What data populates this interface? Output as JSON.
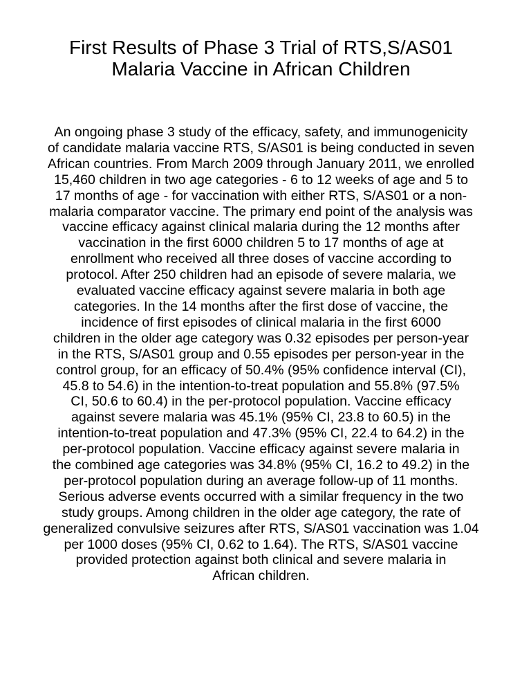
{
  "document": {
    "title_lines": [
      "First Results of Phase 3 Trial of RTS,S/AS01",
      "Malaria Vaccine in African Children"
    ],
    "abstract_lines": [
      "An ongoing phase 3 study of the efficacy, safety, and immunogenicity",
      "of candidate malaria vaccine RTS, S/AS01 is being conducted in seven",
      "African countries. From March 2009 through January 2011, we enrolled",
      "15,460 children in two age categories - 6 to 12 weeks of age and 5 to",
      "17 months of age - for vaccination with either RTS, S/AS01 or a non-",
      "malaria comparator vaccine. The primary end point of the analysis was",
      "vaccine efficacy against clinical malaria during the 12 months after",
      "vaccination in the first 6000 children 5 to 17 months of age at",
      "enrollment who received all three doses of vaccine according to",
      "protocol. After 250 children had an episode of severe malaria, we",
      "evaluated vaccine efficacy against severe malaria in both age",
      "categories. In the 14 months after the first dose of vaccine, the",
      "incidence of first episodes of clinical malaria in the first 6000",
      "children in the older age category was 0.32 episodes per person-year",
      "in the RTS, S/AS01 group and 0.55 episodes per person-year in the",
      "control group, for an efficacy of 50.4% (95% confidence interval (CI),",
      "45.8 to 54.6) in the intention-to-treat population and 55.8% (97.5%",
      "CI, 50.6 to 60.4) in the per-protocol population. Vaccine efficacy",
      "against severe malaria was 45.1% (95% CI, 23.8 to 60.5) in the",
      "intention-to-treat population and 47.3% (95% CI, 22.4 to 64.2) in the",
      "per-protocol population. Vaccine efficacy against severe malaria in",
      "the combined age categories was 34.8% (95% CI, 16.2 to 49.2) in the",
      "per-protocol population during an average follow-up of 11 months.",
      "Serious adverse events occurred with a similar frequency in the two",
      "study groups. Among children in the older age category, the rate of",
      "generalized convulsive seizures after RTS, S/AS01 vaccination was 1.04",
      "per 1000 doses (95% CI, 0.62 to 1.64). The RTS, S/AS01 vaccine",
      "provided protection against both clinical and severe malaria in",
      "African children."
    ]
  }
}
